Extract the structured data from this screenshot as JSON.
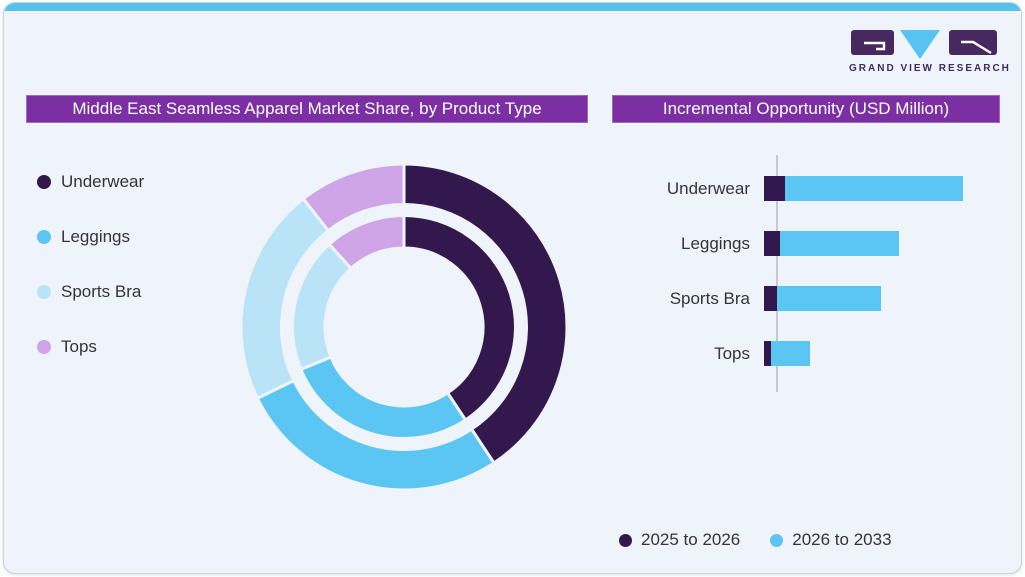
{
  "logo": {
    "text": "GRAND VIEW RESEARCH"
  },
  "palette": {
    "dark_purple": "#33184d",
    "sky_blue": "#5bc6f2",
    "light_blue": "#b9e4f8",
    "lavender": "#cfa5e8",
    "title_bar": "#7b2fa3",
    "top_strip": "#57c1ec",
    "card_bg": "#eef4f9",
    "text": "#35323f"
  },
  "donut_section": {
    "title": "Middle East Seamless Apparel Market Share, by Product Type",
    "legend": [
      {
        "label": "Underwear",
        "color": "#33184d"
      },
      {
        "label": "Leggings",
        "color": "#5bc6f2"
      },
      {
        "label": "Sports Bra",
        "color": "#b9e4f8"
      },
      {
        "label": "Tops",
        "color": "#cfa5e8"
      }
    ]
  },
  "bar_section": {
    "title": "Incremental Opportunity (USD Million)",
    "legend": [
      {
        "label": "2025 to 2026",
        "color": "#33184d"
      },
      {
        "label": "2026 to 2033",
        "color": "#5bc6f2"
      }
    ]
  },
  "chart_data": [
    {
      "type": "pie",
      "subtype": "double-ring-donut",
      "title": "Middle East Seamless Apparel Market Share, by Product Type",
      "categories": [
        "Underwear",
        "Leggings",
        "Sports Bra",
        "Tops"
      ],
      "colors": [
        "#33184d",
        "#5bc6f2",
        "#b9e4f8",
        "#cfa5e8"
      ],
      "units": "percent share (estimated from arc angles, no labels shown)",
      "start_angle_deg": 0,
      "direction": "clockwise",
      "rings": [
        {
          "name": "outer",
          "values": [
            40.7,
            27.1,
            21.6,
            10.6
          ]
        },
        {
          "name": "inner",
          "values": [
            40.7,
            28.1,
            19.5,
            11.7
          ]
        }
      ],
      "legend_position": "left"
    },
    {
      "type": "bar",
      "orientation": "horizontal",
      "stacked": true,
      "title": "Incremental Opportunity (USD Million)",
      "categories": [
        "Underwear",
        "Leggings",
        "Sports Bra",
        "Tops"
      ],
      "series": [
        {
          "name": "2025 to 2026",
          "color": "#33184d",
          "values": [
            10.6,
            8.0,
            6.5,
            3.5
          ]
        },
        {
          "name": "2026 to 2033",
          "color": "#5bc6f2",
          "values": [
            89.4,
            59.8,
            52.3,
            19.6
          ]
        }
      ],
      "xlim": [
        0,
        105
      ],
      "units": "relative units (no axis tick labels shown)",
      "grid": false,
      "legend_position": "bottom-right"
    }
  ]
}
